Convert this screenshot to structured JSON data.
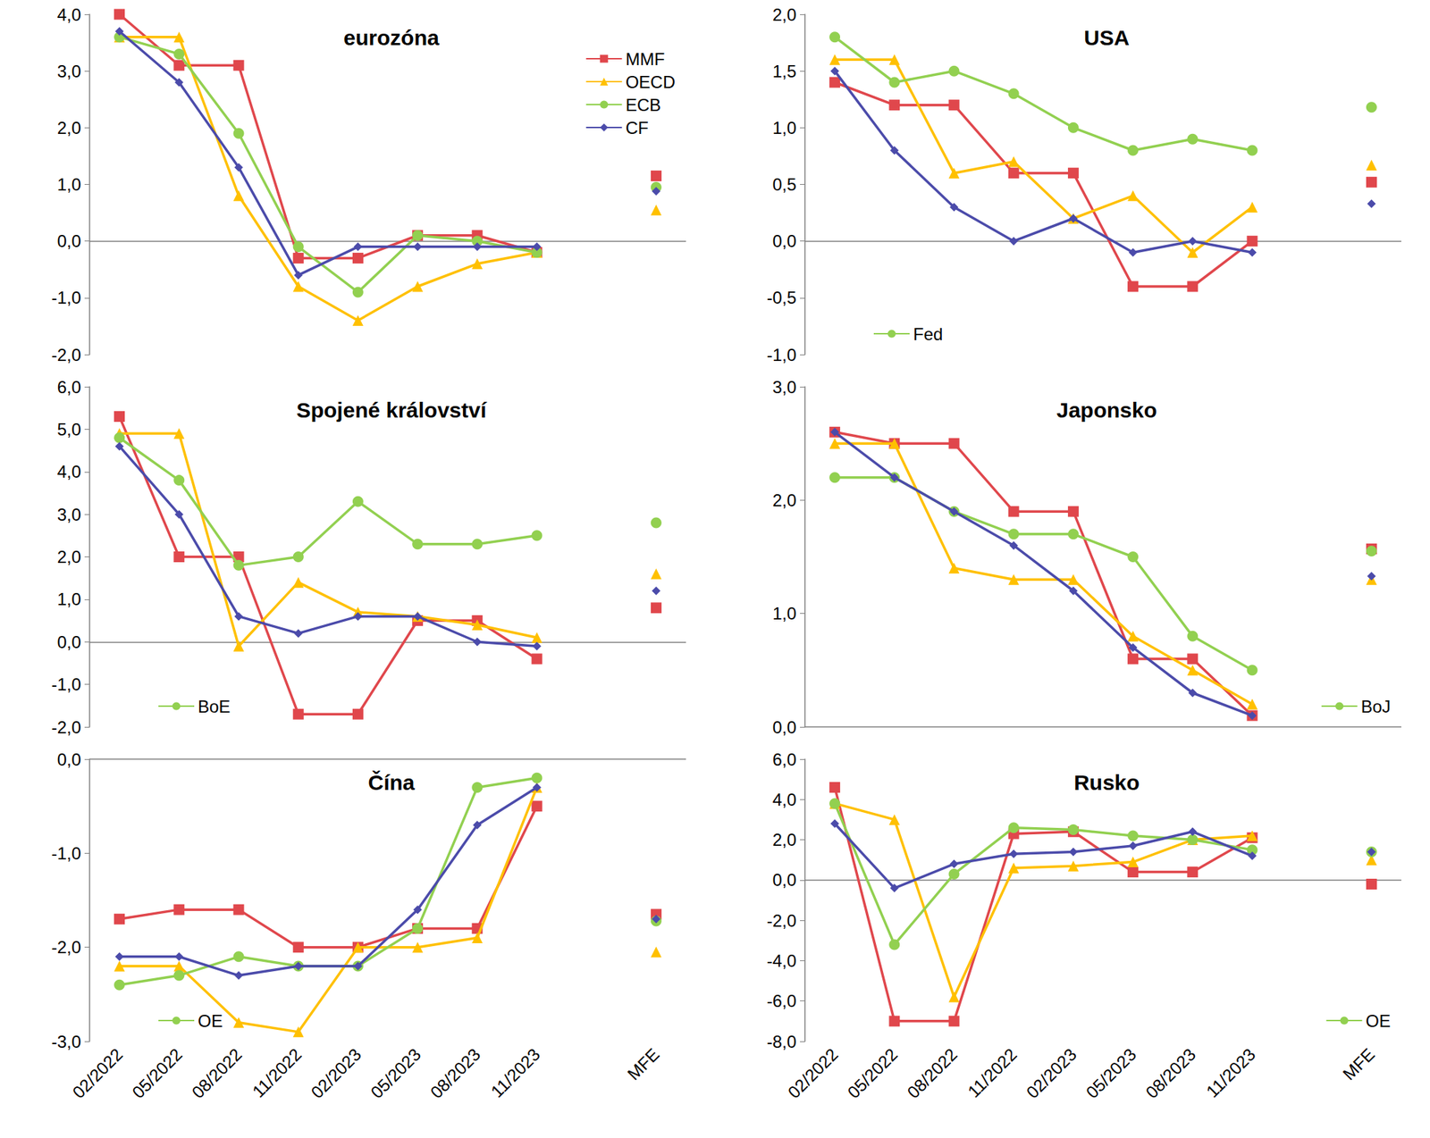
{
  "chart_data": [
    {
      "type": "line",
      "title": "eurozóna",
      "legend": "upper right",
      "tick_labels": "y",
      "categories": [
        "02/2022",
        "05/2022",
        "08/2022",
        "11/2022",
        "02/2023",
        "05/2023",
        "08/2023",
        "11/2023",
        null,
        "MFE"
      ],
      "ylim": [
        -2,
        4
      ],
      "yticks": [
        {
          "value": -2,
          "label": "-2,0"
        },
        {
          "value": -1,
          "label": "-1,0"
        },
        {
          "value": 0,
          "label": "0,0"
        },
        {
          "value": 1,
          "label": "1,0"
        },
        {
          "value": 2,
          "label": "2,0"
        },
        {
          "value": 3,
          "label": "3,0"
        },
        {
          "value": 4,
          "label": "4,0"
        }
      ],
      "series": [
        {
          "name": "MMF",
          "color": "#e0474c",
          "marker": "square",
          "line_style": "solid",
          "values": [
            4.0,
            3.1,
            3.1,
            -0.3,
            -0.3,
            0.1,
            0.1,
            -0.2,
            null,
            1.15
          ]
        },
        {
          "name": "OECD",
          "color": "#ffc000",
          "marker": "triangle",
          "line_style": "solid",
          "values": [
            3.6,
            3.6,
            0.8,
            -0.8,
            -1.4,
            -0.8,
            -0.4,
            -0.2,
            null,
            0.55
          ]
        },
        {
          "name": "ECB",
          "color": "#92d050",
          "marker": "circle",
          "line_style": "solid",
          "values": [
            3.6,
            3.3,
            1.9,
            -0.1,
            -0.9,
            0.1,
            0.0,
            -0.2,
            null,
            0.95
          ]
        },
        {
          "name": "CF",
          "color": "#4b4baa",
          "marker": "diamond",
          "line_style": "solid",
          "values": [
            3.7,
            2.8,
            1.3,
            -0.6,
            -0.1,
            -0.1,
            -0.1,
            -0.1,
            null,
            0.88
          ]
        }
      ]
    },
    {
      "type": "line",
      "title": "USA",
      "legend": "lower left",
      "tick_labels": "y",
      "categories": [
        "02/2022",
        "05/2022",
        "08/2022",
        "11/2022",
        "02/2023",
        "05/2023",
        "08/2023",
        "11/2023",
        null,
        "MFE"
      ],
      "ylim": [
        -1,
        2
      ],
      "yticks": [
        {
          "value": -1,
          "label": "-1,0"
        },
        {
          "value": -0.5,
          "label": "-0,5"
        },
        {
          "value": 0,
          "label": "0,0"
        },
        {
          "value": 0.5,
          "label": "0,5"
        },
        {
          "value": 1,
          "label": "1,0"
        },
        {
          "value": 1.5,
          "label": "1,5"
        },
        {
          "value": 2,
          "label": "2,0"
        }
      ],
      "series": [
        {
          "color": "#e0474c",
          "marker": "square",
          "line_style": "solid",
          "values": [
            1.4,
            1.2,
            1.2,
            0.6,
            0.6,
            -0.4,
            -0.4,
            0.0,
            null,
            0.52
          ]
        },
        {
          "color": "#ffc000",
          "marker": "triangle",
          "line_style": "solid",
          "values": [
            1.6,
            1.6,
            0.6,
            0.7,
            0.2,
            0.4,
            -0.1,
            0.3,
            null,
            0.67
          ]
        },
        {
          "name": "Fed",
          "color": "#92d050",
          "marker": "circle",
          "line_style": "solid",
          "values": [
            1.8,
            1.4,
            1.5,
            1.3,
            1.0,
            0.8,
            0.9,
            0.8,
            null,
            1.18
          ]
        },
        {
          "color": "#4b4baa",
          "marker": "diamond",
          "line_style": "solid",
          "values": [
            1.5,
            0.8,
            0.3,
            0.0,
            0.2,
            -0.1,
            0.0,
            -0.1,
            null,
            0.33
          ]
        }
      ]
    },
    {
      "type": "line",
      "title": "Spojené království",
      "legend": "lower left",
      "tick_labels": "y",
      "categories": [
        "02/2022",
        "05/2022",
        "08/2022",
        "11/2022",
        "02/2023",
        "05/2023",
        "08/2023",
        "11/2023",
        null,
        "MFE"
      ],
      "ylim": [
        -2,
        6
      ],
      "yticks": [
        {
          "value": -2,
          "label": "-2,0"
        },
        {
          "value": -1,
          "label": "-1,0"
        },
        {
          "value": 0,
          "label": "0,0"
        },
        {
          "value": 1,
          "label": "1,0"
        },
        {
          "value": 2,
          "label": "2,0"
        },
        {
          "value": 3,
          "label": "3,0"
        },
        {
          "value": 4,
          "label": "4,0"
        },
        {
          "value": 5,
          "label": "5,0"
        },
        {
          "value": 6,
          "label": "6,0"
        }
      ],
      "series": [
        {
          "color": "#e0474c",
          "marker": "square",
          "line_style": "solid",
          "values": [
            5.3,
            2.0,
            2.0,
            -1.7,
            -1.7,
            0.5,
            0.5,
            -0.4,
            null,
            0.8
          ]
        },
        {
          "color": "#ffc000",
          "marker": "triangle",
          "line_style": "solid",
          "values": [
            4.9,
            4.9,
            -0.1,
            1.4,
            0.7,
            0.6,
            0.4,
            0.1,
            null,
            1.6
          ]
        },
        {
          "name": "BoE",
          "color": "#92d050",
          "marker": "circle",
          "line_style": "solid",
          "values": [
            4.8,
            3.8,
            1.8,
            2.0,
            3.3,
            2.3,
            2.3,
            2.5,
            null,
            2.8
          ]
        },
        {
          "color": "#4b4baa",
          "marker": "diamond",
          "line_style": "solid",
          "values": [
            4.6,
            3.0,
            0.6,
            0.2,
            0.6,
            0.6,
            0.0,
            -0.1,
            null,
            1.2
          ]
        }
      ]
    },
    {
      "type": "line",
      "title": "Japonsko",
      "legend": "lower right",
      "tick_labels": "y",
      "categories": [
        "02/2022",
        "05/2022",
        "08/2022",
        "11/2022",
        "02/2023",
        "05/2023",
        "08/2023",
        "11/2023",
        null,
        "MFE"
      ],
      "ylim": [
        0,
        3
      ],
      "yticks": [
        {
          "value": 0,
          "label": "0,0"
        },
        {
          "value": 1,
          "label": "1,0"
        },
        {
          "value": 2,
          "label": "2,0"
        },
        {
          "value": 3,
          "label": "3,0"
        }
      ],
      "series": [
        {
          "color": "#e0474c",
          "marker": "square",
          "line_style": "solid",
          "values": [
            2.6,
            2.5,
            2.5,
            1.9,
            1.9,
            0.6,
            0.6,
            0.1,
            null,
            1.57
          ]
        },
        {
          "color": "#ffc000",
          "marker": "triangle",
          "line_style": "solid",
          "values": [
            2.5,
            2.5,
            1.4,
            1.3,
            1.3,
            0.8,
            0.5,
            0.2,
            null,
            1.3
          ]
        },
        {
          "name": "BoJ",
          "color": "#92d050",
          "marker": "circle",
          "line_style": "solid",
          "values": [
            2.2,
            2.2,
            1.9,
            1.7,
            1.7,
            1.5,
            0.8,
            0.5,
            null,
            1.55
          ]
        },
        {
          "color": "#4b4baa",
          "marker": "diamond",
          "line_style": "solid",
          "values": [
            2.6,
            2.2,
            1.9,
            1.6,
            1.2,
            0.7,
            0.3,
            0.1,
            null,
            1.33
          ]
        }
      ]
    },
    {
      "type": "line",
      "title": "Čína",
      "legend": "lower left",
      "categories": [
        "02/2022",
        "05/2022",
        "08/2022",
        "11/2022",
        "02/2023",
        "05/2023",
        "08/2023",
        "11/2023",
        null,
        "MFE"
      ],
      "ylim": [
        -3,
        0
      ],
      "yticks": [
        {
          "value": -3,
          "label": "-3,0"
        },
        {
          "value": -2,
          "label": "-2,0"
        },
        {
          "value": -1,
          "label": "-1,0"
        },
        {
          "value": 0,
          "label": "0,0"
        }
      ],
      "series": [
        {
          "color": "#e0474c",
          "marker": "square",
          "line_style": "solid",
          "values": [
            -1.7,
            -1.6,
            -1.6,
            -2.0,
            -2.0,
            -1.8,
            -1.8,
            -0.5,
            null,
            -1.65
          ]
        },
        {
          "color": "#ffc000",
          "marker": "triangle",
          "line_style": "solid",
          "values": [
            -2.2,
            -2.2,
            -2.8,
            -2.9,
            -2.0,
            -2.0,
            -1.9,
            -0.3,
            null,
            -2.05
          ]
        },
        {
          "name": "OE",
          "color": "#92d050",
          "marker": "circle",
          "line_style": "solid",
          "values": [
            -2.4,
            -2.3,
            -2.1,
            -2.2,
            -2.2,
            -1.8,
            -0.3,
            -0.2,
            null,
            -1.72
          ]
        },
        {
          "color": "#4b4baa",
          "marker": "diamond",
          "line_style": "solid",
          "values": [
            -2.1,
            -2.1,
            -2.3,
            -2.2,
            -2.2,
            -1.6,
            -0.7,
            -0.3,
            null,
            -1.7
          ]
        }
      ]
    },
    {
      "type": "line",
      "title": "Rusko",
      "legend": "lower right",
      "categories": [
        "02/2022",
        "05/2022",
        "08/2022",
        "11/2022",
        "02/2023",
        "05/2023",
        "08/2023",
        "11/2023",
        null,
        "MFE"
      ],
      "ylim": [
        -8,
        6
      ],
      "yticks": [
        {
          "value": -8,
          "label": "-8,0"
        },
        {
          "value": -6,
          "label": "-6,0"
        },
        {
          "value": -4,
          "label": "-4,0"
        },
        {
          "value": -2,
          "label": "-2,0"
        },
        {
          "value": 0,
          "label": "0,0"
        },
        {
          "value": 2,
          "label": "2,0"
        },
        {
          "value": 4,
          "label": "4,0"
        },
        {
          "value": 6,
          "label": "6,0"
        }
      ],
      "series": [
        {
          "color": "#e0474c",
          "marker": "square",
          "line_style": "solid",
          "values": [
            4.6,
            -7.0,
            -7.0,
            2.3,
            2.4,
            0.4,
            0.4,
            2.1,
            null,
            -0.2
          ]
        },
        {
          "color": "#ffc000",
          "marker": "triangle",
          "line_style": "solid",
          "values": [
            3.8,
            3.0,
            -5.8,
            0.6,
            0.7,
            0.9,
            2.0,
            2.2,
            null,
            1.0
          ]
        },
        {
          "name": "OE",
          "color": "#92d050",
          "marker": "circle",
          "line_style": "solid",
          "values": [
            3.8,
            -3.2,
            0.3,
            2.6,
            2.5,
            2.2,
            2.0,
            1.5,
            null,
            1.4
          ]
        },
        {
          "color": "#4b4baa",
          "marker": "diamond",
          "line_style": "solid",
          "values": [
            2.8,
            -0.4,
            0.8,
            1.3,
            1.4,
            1.7,
            2.4,
            1.2,
            null,
            1.4
          ]
        }
      ]
    }
  ]
}
